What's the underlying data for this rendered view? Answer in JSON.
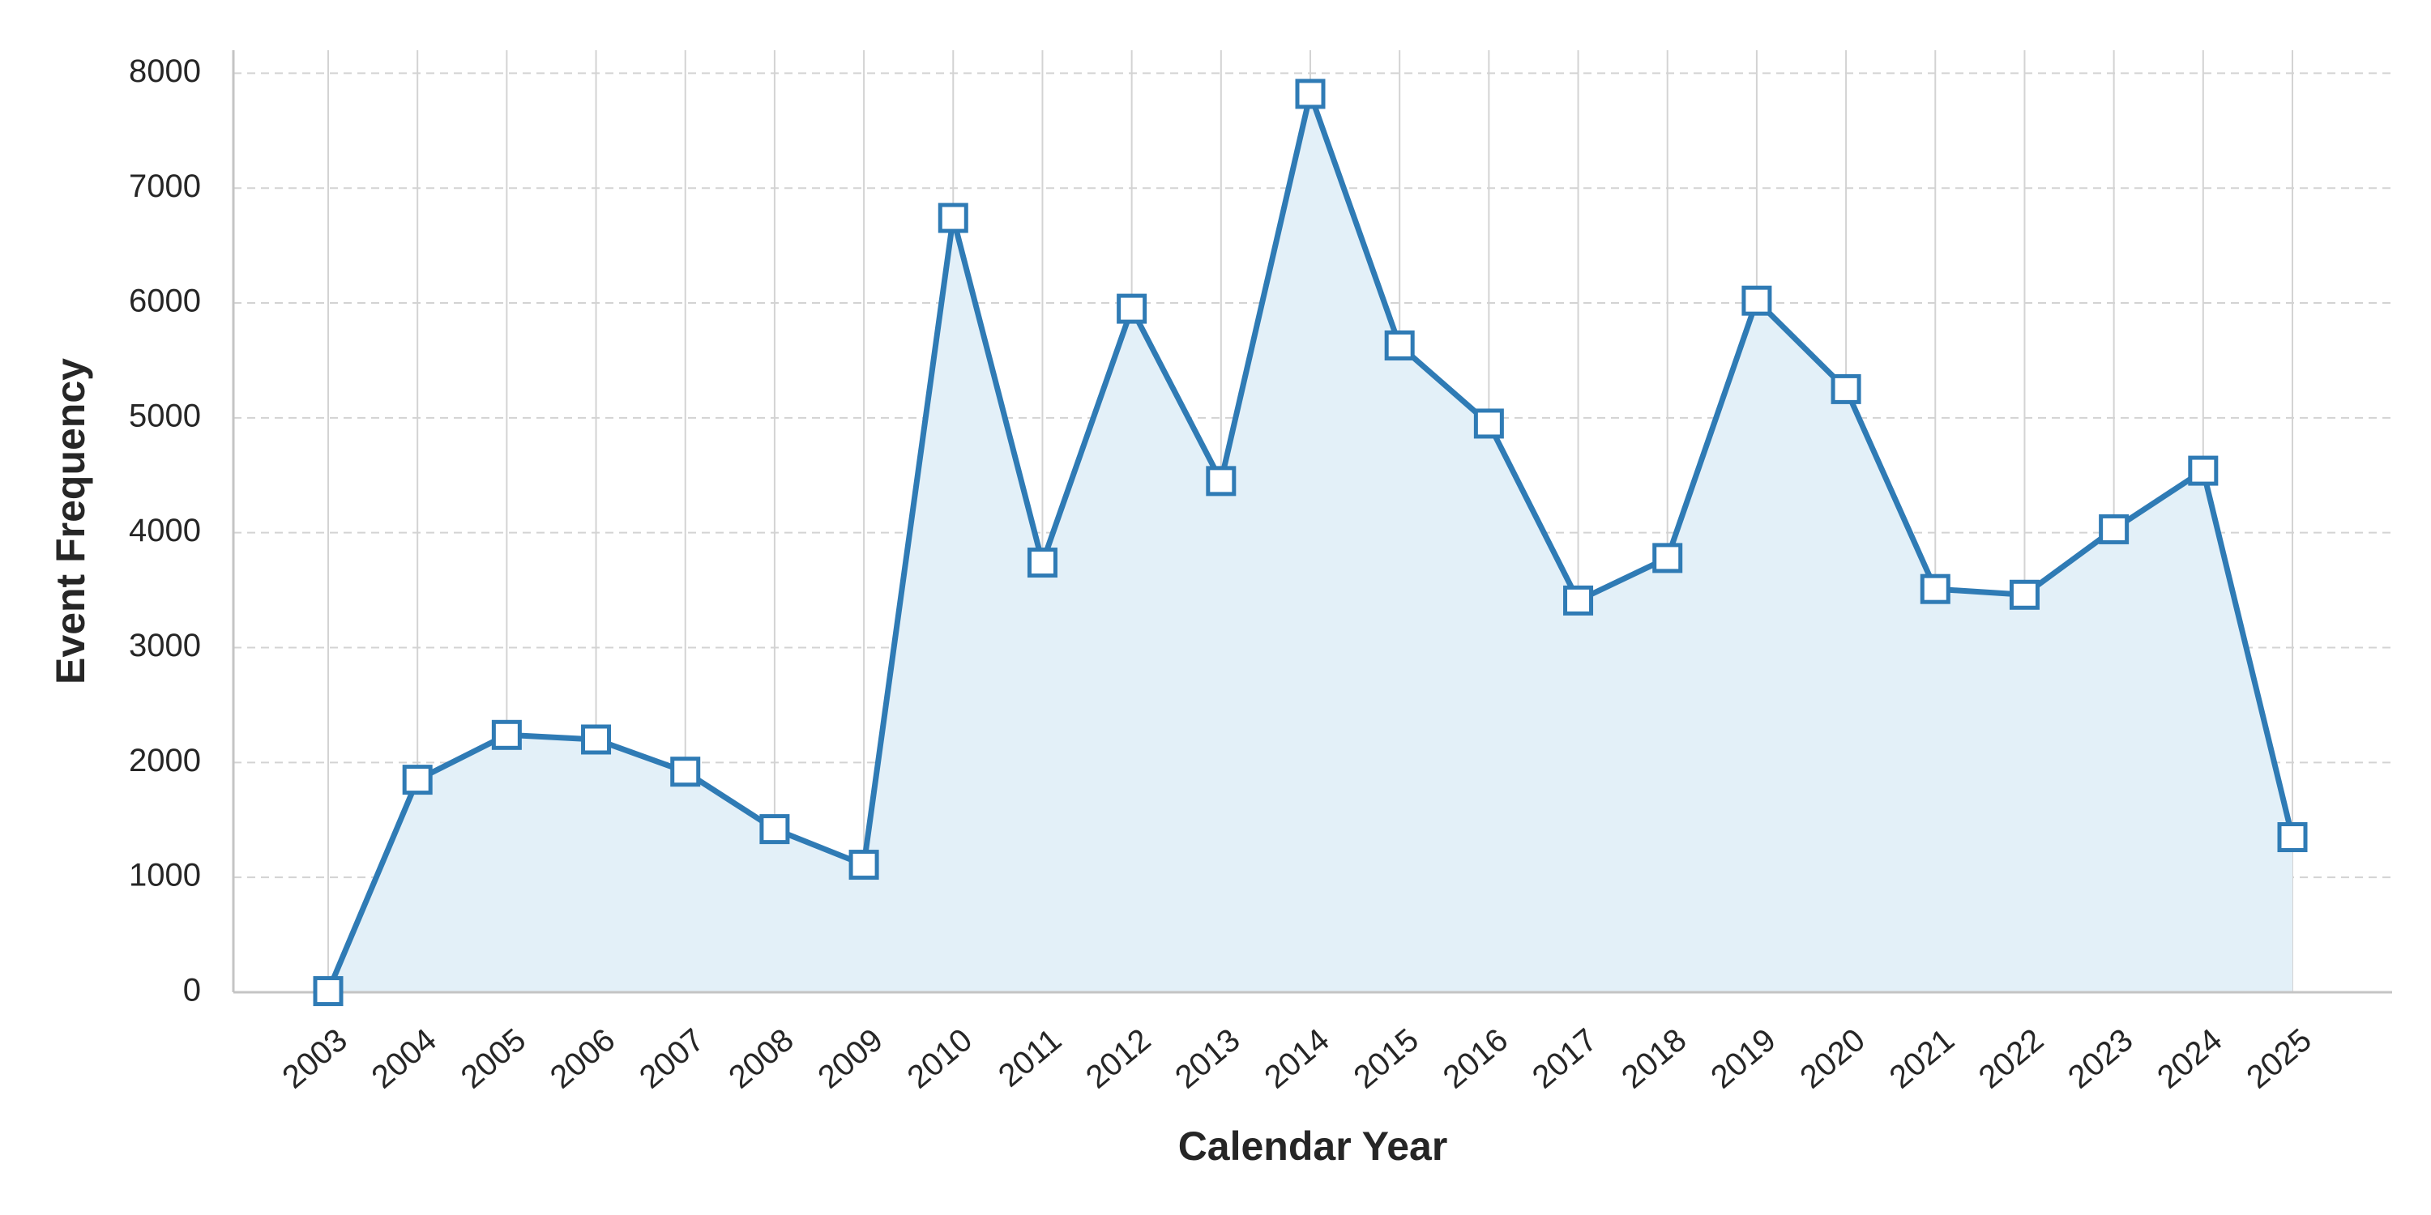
{
  "chart_data": {
    "type": "area",
    "title": "",
    "xlabel": "Calendar Year",
    "ylabel": "Event Frequency",
    "x": [
      "2003",
      "2004",
      "2005",
      "2006",
      "2007",
      "2008",
      "2009",
      "2010",
      "2011",
      "2012",
      "2013",
      "2014",
      "2015",
      "2016",
      "2017",
      "2018",
      "2019",
      "2020",
      "2021",
      "2022",
      "2023",
      "2024",
      "2025"
    ],
    "series": [
      {
        "values": [
          10,
          1850,
          2240,
          2200,
          1920,
          1420,
          1110,
          6740,
          3740,
          5950,
          4450,
          7820,
          5630,
          4950,
          3410,
          3780,
          6020,
          5250,
          3510,
          3460,
          4030,
          4540,
          1350
        ]
      }
    ],
    "ylim": [
      0,
      8200
    ],
    "yticks": [
      0,
      1000,
      2000,
      3000,
      4000,
      5000,
      6000,
      7000,
      8000
    ],
    "grid": {
      "x": true,
      "y": true,
      "y_style": "dashed"
    },
    "legend": "none",
    "marker": "square",
    "colors": {
      "line": "#2f7bb5",
      "fill": "#e3f0f8",
      "marker_face": "#ffffff",
      "grid": "#d3d3d3",
      "axis": "#c4c4c4",
      "text": "#262626"
    }
  }
}
